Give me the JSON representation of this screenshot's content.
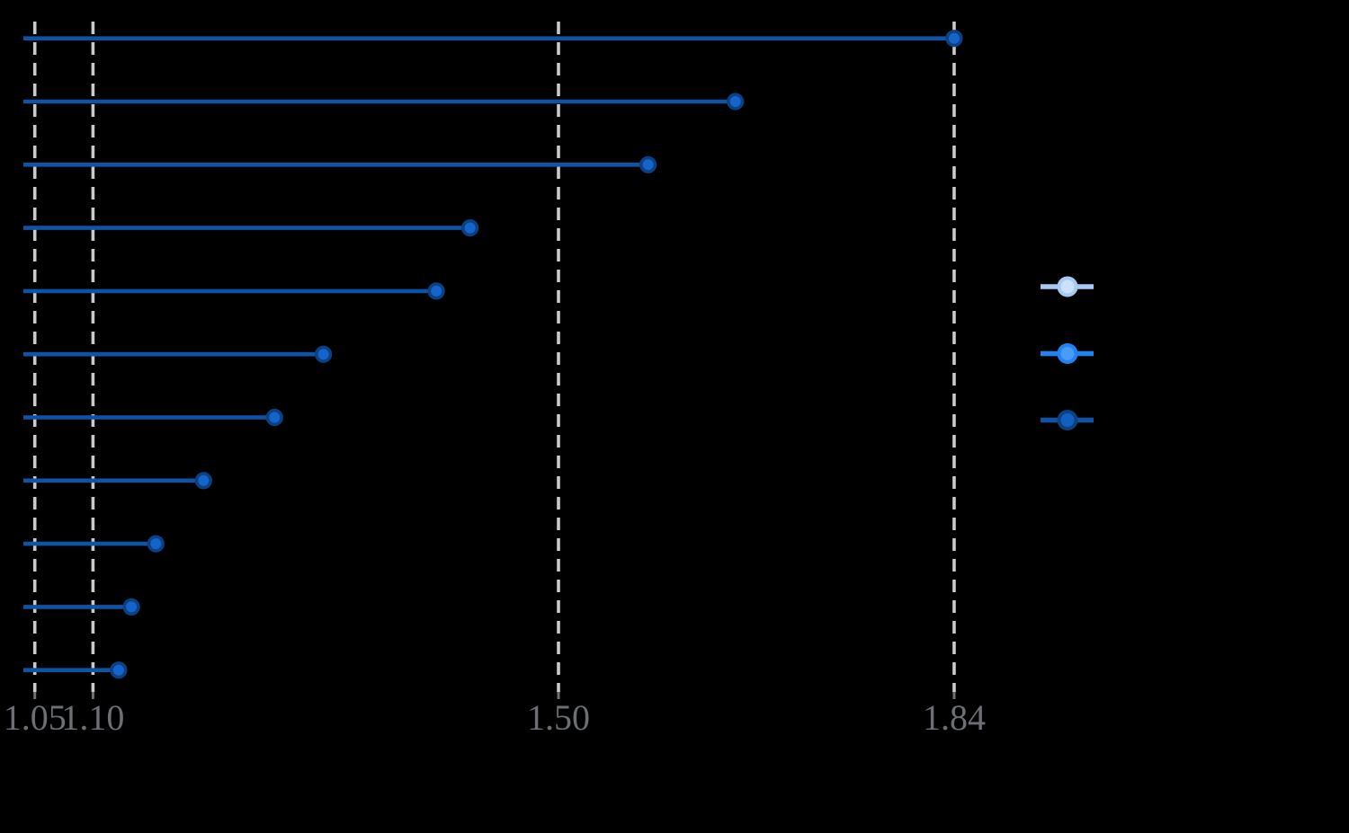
{
  "figure": {
    "background": "#000000",
    "title": "",
    "note": "all text except x tick labels is not visible in the rendered pixels"
  },
  "chart_data": {
    "type": "scatter",
    "variant": "horizontal-lollipop",
    "title": "",
    "xlabel": "",
    "ylabel": "",
    "categories": [
      "",
      "",
      "",
      "",
      "",
      "",
      "",
      "",
      "",
      "",
      ""
    ],
    "values": [
      1.84,
      1.652,
      1.577,
      1.424,
      1.395,
      1.298,
      1.256,
      1.195,
      1.154,
      1.133,
      1.122
    ],
    "x_ticks": [
      1.05,
      1.1,
      1.5,
      1.84
    ],
    "x_tick_labels": [
      "1.05",
      "1.10",
      "1.50",
      "1.84"
    ],
    "xlim": [
      1.04,
      2.12
    ],
    "grid": "dashed vertical lines at labeled ticks",
    "gridline_color": "#C8CACB",
    "tick_mark_color": "#6E7173",
    "tick_label_color": "#6C6F73",
    "series_style": {
      "stem_color": "#0D53A6",
      "dot_fill": "#1465CB",
      "dot_edge": "#0B4182"
    },
    "legend": {
      "position": "right-outside",
      "labels_visible": false,
      "entries": [
        {
          "label": "",
          "line_color": "#A5CBF3",
          "dot_fill": "#CBE0F9",
          "dot_edge": "#A5CBF3"
        },
        {
          "label": "",
          "line_color": "#2183F2",
          "dot_fill": "#4A9BF6",
          "dot_edge": "#2183F2"
        },
        {
          "label": "",
          "line_color": "#0D53A6",
          "dot_fill": "#1160BE",
          "dot_edge": "#0B4182"
        }
      ]
    }
  }
}
